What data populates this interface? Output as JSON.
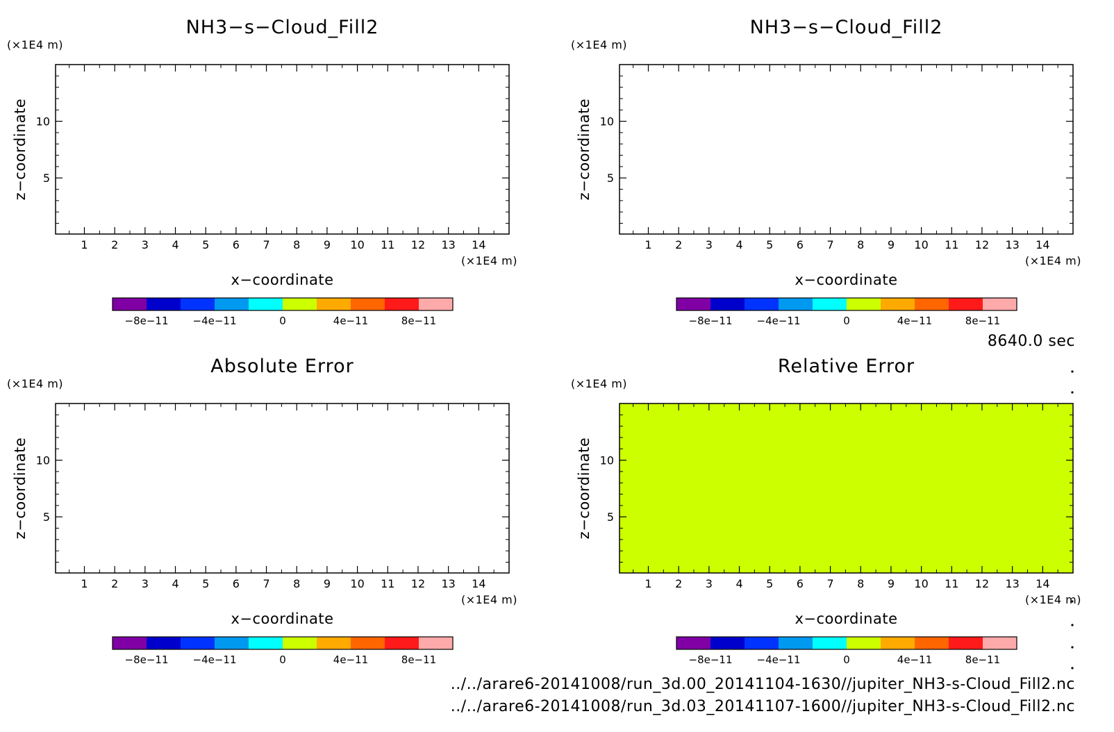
{
  "colors": {
    "colorbar": [
      "#8000a6",
      "#0000cc",
      "#0033ff",
      "#0099f0",
      "#00ffff",
      "#ccff00",
      "#ffaa00",
      "#ff6600",
      "#ff1a1a",
      "#ffaaaa"
    ],
    "background": "#ffffff",
    "frame": "#000000"
  },
  "time_label": "8640.0 sec",
  "file_paths": [
    "../../arare6-20141008/run_3d.00_20141104-1630//jupiter_NH3-s-Cloud_Fill2.nc",
    "../../arare6-20141008/run_3d.03_20141107-1600//jupiter_NH3-s-Cloud_Fill2.nc"
  ],
  "chart_data": [
    {
      "type": "heatmap",
      "title": "NH3−s−Cloud_Fill2",
      "xlabel": "x−coordinate",
      "ylabel": "z−coordinate",
      "x_unit": "(×1E4 m)",
      "y_unit": "(×1E4 m)",
      "xlim": [
        0.05,
        15.0
      ],
      "ylim": [
        0.05,
        15.0
      ],
      "x_ticks": [
        1,
        2,
        3,
        4,
        5,
        6,
        7,
        8,
        9,
        10,
        11,
        12,
        13,
        14
      ],
      "y_ticks": [
        5,
        10
      ],
      "fill": null,
      "colorbar": {
        "levels": [
          -1e-10,
          -8e-11,
          -6e-11,
          -4e-11,
          -2e-11,
          0,
          2e-11,
          4e-11,
          6e-11,
          8e-11,
          1e-10
        ],
        "labels": [
          "−8e−11",
          "−4e−11",
          "0",
          "4e−11",
          "8e−11"
        ],
        "label_values": [
          -8e-11,
          -4e-11,
          0,
          4e-11,
          8e-11
        ]
      }
    },
    {
      "type": "heatmap",
      "title": "NH3−s−Cloud_Fill2",
      "xlabel": "x−coordinate",
      "ylabel": "z−coordinate",
      "x_unit": "(×1E4 m)",
      "y_unit": "(×1E4 m)",
      "xlim": [
        0.05,
        15.0
      ],
      "ylim": [
        0.05,
        15.0
      ],
      "x_ticks": [
        1,
        2,
        3,
        4,
        5,
        6,
        7,
        8,
        9,
        10,
        11,
        12,
        13,
        14
      ],
      "y_ticks": [
        5,
        10
      ],
      "fill": null,
      "colorbar": {
        "levels": [
          -1e-10,
          -8e-11,
          -6e-11,
          -4e-11,
          -2e-11,
          0,
          2e-11,
          4e-11,
          6e-11,
          8e-11,
          1e-10
        ],
        "labels": [
          "−8e−11",
          "−4e−11",
          "0",
          "4e−11",
          "8e−11"
        ],
        "label_values": [
          -8e-11,
          -4e-11,
          0,
          4e-11,
          8e-11
        ]
      }
    },
    {
      "type": "heatmap",
      "title": "Absolute Error",
      "xlabel": "x−coordinate",
      "ylabel": "z−coordinate",
      "x_unit": "(×1E4 m)",
      "y_unit": "(×1E4 m)",
      "xlim": [
        0.05,
        15.0
      ],
      "ylim": [
        0.05,
        15.0
      ],
      "x_ticks": [
        1,
        2,
        3,
        4,
        5,
        6,
        7,
        8,
        9,
        10,
        11,
        12,
        13,
        14
      ],
      "y_ticks": [
        5,
        10
      ],
      "fill": null,
      "colorbar": {
        "levels": [
          -1e-10,
          -8e-11,
          -6e-11,
          -4e-11,
          -2e-11,
          0,
          2e-11,
          4e-11,
          6e-11,
          8e-11,
          1e-10
        ],
        "labels": [
          "−8e−11",
          "−4e−11",
          "0",
          "4e−11",
          "8e−11"
        ],
        "label_values": [
          -8e-11,
          -4e-11,
          0,
          4e-11,
          8e-11
        ]
      }
    },
    {
      "type": "heatmap",
      "title": "Relative Error",
      "xlabel": "x−coordinate",
      "ylabel": "z−coordinate",
      "x_unit": "(×1E4 m)",
      "y_unit": "(×1E4 m)",
      "xlim": [
        0.05,
        15.0
      ],
      "ylim": [
        0.05,
        15.0
      ],
      "x_ticks": [
        1,
        2,
        3,
        4,
        5,
        6,
        7,
        8,
        9,
        10,
        11,
        12,
        13,
        14
      ],
      "y_ticks": [
        5,
        10
      ],
      "fill": "#ccff00",
      "colorbar": {
        "levels": [
          -1e-10,
          -8e-11,
          -6e-11,
          -4e-11,
          -2e-11,
          0,
          2e-11,
          4e-11,
          6e-11,
          8e-11,
          1e-10
        ],
        "labels": [
          "−8e−11",
          "−4e−11",
          "0",
          "4e−11",
          "8e−11"
        ],
        "label_values": [
          -8e-11,
          -4e-11,
          0,
          4e-11,
          8e-11
        ]
      }
    }
  ]
}
